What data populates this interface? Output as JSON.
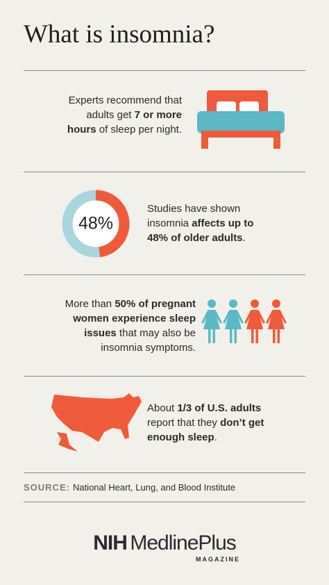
{
  "title": "What is insomnia?",
  "sections": [
    {
      "lines": [
        [
          {
            "text": "Experts recommend that",
            "bold": false
          }
        ],
        [
          {
            "text": "adults get ",
            "bold": false
          },
          {
            "text": "7 or more",
            "bold": true
          }
        ],
        [
          {
            "text": "hours",
            "bold": true
          },
          {
            "text": " of sleep per night.",
            "bold": false
          }
        ]
      ]
    },
    {
      "percent": 48,
      "percent_label": "48%",
      "lines": [
        [
          {
            "text": "Studies have shown",
            "bold": false
          }
        ],
        [
          {
            "text": "insomnia ",
            "bold": false
          },
          {
            "text": "affects up to",
            "bold": true
          }
        ],
        [
          {
            "text": "48% of older adults",
            "bold": true
          },
          {
            "text": ".",
            "bold": false
          }
        ]
      ]
    },
    {
      "lines": [
        [
          {
            "text": "More than ",
            "bold": false
          },
          {
            "text": "50% of pregnant",
            "bold": true
          }
        ],
        [
          {
            "text": "women experience sleep",
            "bold": true
          }
        ],
        [
          {
            "text": "issues",
            "bold": true
          },
          {
            "text": " that may also be",
            "bold": false
          }
        ],
        [
          {
            "text": "insomnia symptoms.",
            "bold": false
          }
        ]
      ]
    },
    {
      "lines": [
        [
          {
            "text": "About ",
            "bold": false
          },
          {
            "text": "1/3 of U.S. adults",
            "bold": true
          }
        ],
        [
          {
            "text": "report that they ",
            "bold": false
          },
          {
            "text": "don’t get",
            "bold": true
          }
        ],
        [
          {
            "text": "enough sleep",
            "bold": true
          },
          {
            "text": ".",
            "bold": false
          }
        ]
      ]
    }
  ],
  "source": {
    "label": "SOURCE:",
    "text": "National Heart, Lung, and Blood Institute"
  },
  "logo": {
    "nih": "NIH",
    "name": "MedlinePlus",
    "sub": "MAGAZINE"
  }
}
